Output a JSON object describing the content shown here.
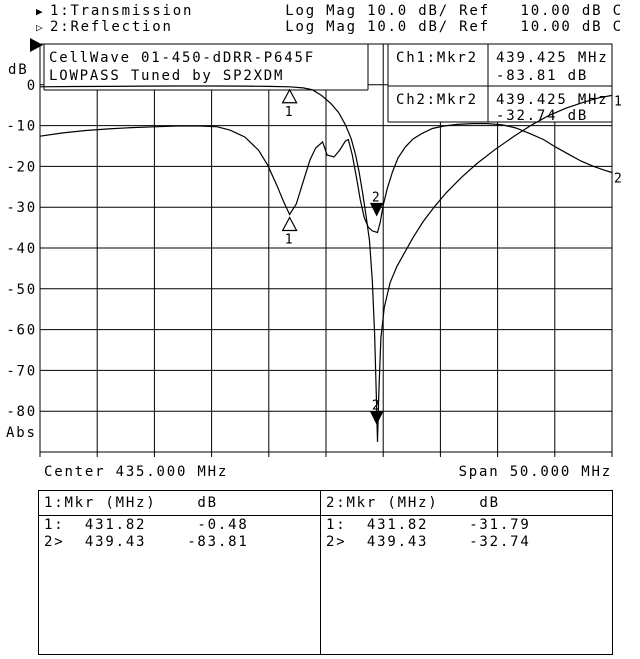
{
  "header": {
    "line1": {
      "indicator": "▶",
      "text": "1:Transmission         Log Mag 10.0 dB/ Ref   10.00 dB C"
    },
    "line2": {
      "indicator": "▷",
      "text": "2:Reflection           Log Mag 10.0 dB/ Ref   10.00 dB C"
    }
  },
  "plot": {
    "y_axis_unit": "dB",
    "y_axis_bottom_label": "Abs",
    "title_line1": "CellWave 01-450-dDRR-P645F",
    "title_line2": "LOWPASS Tuned by SP2XDM",
    "ch1_readout": {
      "label": "Ch1:Mkr2",
      "freq": "439.425 MHz",
      "value": "-83.81 dB"
    },
    "ch2_readout": {
      "label": "Ch2:Mkr2",
      "freq": "439.425 MHz",
      "value": "-32.74 dB"
    },
    "x_axis": {
      "center": "Center 435.000 MHz",
      "span": "Span 50.000 MHz"
    },
    "trace_end_labels": {
      "trace1": "1",
      "trace2": "2"
    }
  },
  "marker_table": {
    "ch1": {
      "header": "1:Mkr (MHz)    dB",
      "rows": [
        "1:  431.82     -0.48",
        "2>  439.43    -83.81"
      ]
    },
    "ch2": {
      "header": "2:Mkr (MHz)    dB",
      "rows": [
        "1:  431.82    -31.79",
        "2>  439.43    -32.74"
      ]
    }
  },
  "chart_data": {
    "type": "line",
    "title": "CellWave 01-450-dDRR-P645F LOWPASS Tuned by SP2XDM",
    "x_unit": "MHz",
    "y_unit": "dB",
    "center_mhz": 435.0,
    "span_mhz": 50.0,
    "x_range": [
      410,
      460
    ],
    "y_top": 10,
    "y_bottom": -90,
    "ref_db": 10.0,
    "db_per_div": 10.0,
    "y_tick_labels": [
      "0",
      "-10",
      "-20",
      "-30",
      "-40",
      "-50",
      "-60",
      "-70",
      "-80"
    ],
    "series": [
      {
        "name": "Transmission",
        "points": [
          [
            410,
            -0.5
          ],
          [
            413,
            -0.42
          ],
          [
            416,
            -0.38
          ],
          [
            419,
            -0.33
          ],
          [
            422,
            -0.3
          ],
          [
            425,
            -0.3
          ],
          [
            428,
            -0.32
          ],
          [
            430,
            -0.38
          ],
          [
            431.82,
            -0.48
          ],
          [
            433,
            -0.75
          ],
          [
            433.8,
            -1.2
          ],
          [
            434.6,
            -2.6
          ],
          [
            435.4,
            -4.5
          ],
          [
            436.1,
            -6.8
          ],
          [
            436.7,
            -9.8
          ],
          [
            437.2,
            -13.2
          ],
          [
            437.6,
            -17.3
          ],
          [
            437.9,
            -21.5
          ],
          [
            438.2,
            -26.5
          ],
          [
            438.5,
            -32
          ],
          [
            438.8,
            -38.2
          ],
          [
            439.05,
            -48
          ],
          [
            439.25,
            -61
          ],
          [
            439.4,
            -76
          ],
          [
            439.5,
            -87.5
          ],
          [
            439.62,
            -75
          ],
          [
            439.8,
            -62
          ],
          [
            440.1,
            -54.5
          ],
          [
            440.6,
            -48.5
          ],
          [
            441.2,
            -44.5
          ],
          [
            441.8,
            -41.5
          ],
          [
            442.6,
            -37.5
          ],
          [
            443.5,
            -33.5
          ],
          [
            444.5,
            -29.8
          ],
          [
            445.5,
            -26.5
          ],
          [
            446.8,
            -22.8
          ],
          [
            448.2,
            -19.3
          ],
          [
            449.8,
            -15.8
          ],
          [
            451.5,
            -12.5
          ],
          [
            453,
            -9.8
          ],
          [
            454.5,
            -7.5
          ],
          [
            456,
            -5.7
          ],
          [
            457.5,
            -4.3
          ],
          [
            458.8,
            -3.2
          ],
          [
            460,
            -2.6
          ]
        ]
      },
      {
        "name": "Reflection",
        "points": [
          [
            410,
            -12.6
          ],
          [
            412,
            -11.8
          ],
          [
            414,
            -11.2
          ],
          [
            416,
            -10.8
          ],
          [
            418,
            -10.5
          ],
          [
            420,
            -10.3
          ],
          [
            422,
            -10.1
          ],
          [
            424,
            -10.1
          ],
          [
            425.5,
            -10.3
          ],
          [
            426.6,
            -11.1
          ],
          [
            427.9,
            -12.8
          ],
          [
            429.1,
            -16
          ],
          [
            429.9,
            -19.7
          ],
          [
            430.7,
            -24.6
          ],
          [
            431.3,
            -28.7
          ],
          [
            431.82,
            -31.79
          ],
          [
            432.4,
            -29.2
          ],
          [
            433,
            -23.8
          ],
          [
            433.6,
            -18.4
          ],
          [
            434.1,
            -15.5
          ],
          [
            434.7,
            -14
          ],
          [
            435.1,
            -17.2
          ],
          [
            435.7,
            -17.7
          ],
          [
            436.2,
            -16
          ],
          [
            436.7,
            -13.8
          ],
          [
            436.95,
            -13.4
          ],
          [
            437.3,
            -17.2
          ],
          [
            437.7,
            -23.3
          ],
          [
            438,
            -28.2
          ],
          [
            438.35,
            -32.6
          ],
          [
            438.7,
            -34.9
          ],
          [
            439.05,
            -35.8
          ],
          [
            439.5,
            -36.2
          ],
          [
            439.75,
            -33.6
          ],
          [
            440,
            -29.5
          ],
          [
            440.35,
            -25.5
          ],
          [
            440.8,
            -21.4
          ],
          [
            441.3,
            -17.9
          ],
          [
            441.95,
            -15.2
          ],
          [
            442.6,
            -13.3
          ],
          [
            443.4,
            -11.9
          ],
          [
            444.3,
            -10.7
          ],
          [
            445.3,
            -10.1
          ],
          [
            446.5,
            -9.7
          ],
          [
            447.8,
            -9.5
          ],
          [
            449.1,
            -9.5
          ],
          [
            450.4,
            -9.8
          ],
          [
            451.6,
            -10.6
          ],
          [
            452.8,
            -11.9
          ],
          [
            454,
            -13.4
          ],
          [
            455.1,
            -15.3
          ],
          [
            456.2,
            -17
          ],
          [
            457.3,
            -18.7
          ],
          [
            458.4,
            -20
          ],
          [
            459.3,
            -20.9
          ],
          [
            460,
            -21.5
          ]
        ]
      }
    ],
    "markers": [
      {
        "label": "1",
        "freq_mhz": 431.82,
        "transmission_db": -0.48,
        "reflection_db": -31.79,
        "active": false
      },
      {
        "label": "2",
        "freq_mhz": 439.43,
        "transmission_db": -83.81,
        "reflection_db": -32.74,
        "active": true
      }
    ]
  }
}
